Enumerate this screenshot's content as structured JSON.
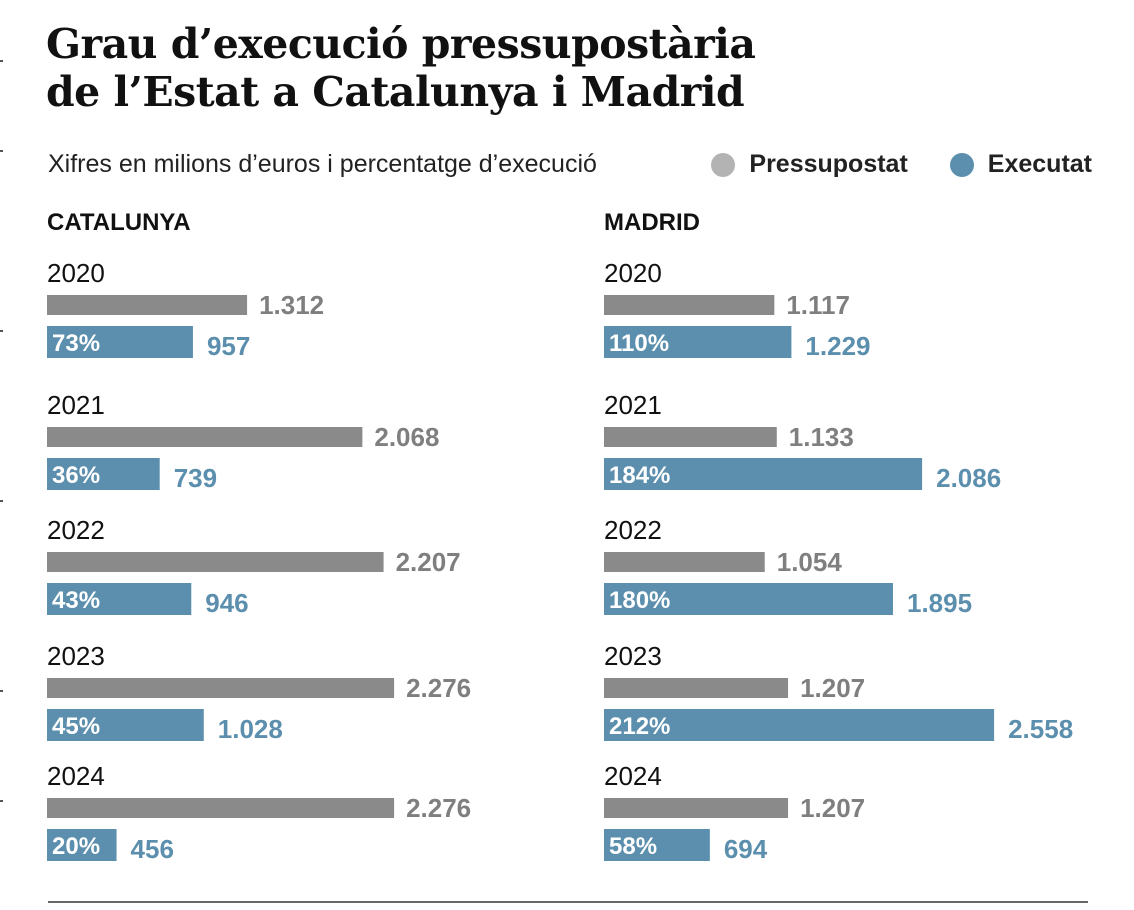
{
  "title_line1": "Grau d’execució pressupostària",
  "title_line2": "de l’Estat a Catalunya i Madrid",
  "subtitle": "Xifres en milions d’euros i percentatge d’execució",
  "legend": [
    {
      "label": "Pressupostat",
      "color": "#8a8a8a",
      "dot_color": "#b3b3b3"
    },
    {
      "label": "Executat",
      "color": "#5b8fad",
      "dot_color": "#5b8fad"
    }
  ],
  "colors": {
    "budget_bar": "#8a8a8a",
    "budget_text": "#7f7f7f",
    "executed_bar": "#5b8fad",
    "executed_text": "#5b8fad"
  },
  "chart_data": [
    {
      "type": "bar",
      "orientation": "horizontal",
      "title": "CATALUNYA",
      "categories": [
        "2020",
        "2021",
        "2022",
        "2023",
        "2024"
      ],
      "series": [
        {
          "name": "Pressupostat",
          "values": [
            1312,
            2068,
            2207,
            2276,
            2276
          ],
          "labels": [
            "1.312",
            "2.068",
            "2.207",
            "2.276",
            "2.276"
          ]
        },
        {
          "name": "Executat",
          "values": [
            957,
            739,
            946,
            1028,
            456
          ],
          "labels": [
            "957",
            "739",
            "946",
            "1.028",
            "456"
          ],
          "percent_labels": [
            "73%",
            "36%",
            "43%",
            "45%",
            "20%"
          ]
        }
      ],
      "xlim": [
        0,
        2600
      ]
    },
    {
      "type": "bar",
      "orientation": "horizontal",
      "title": "MADRID",
      "categories": [
        "2020",
        "2021",
        "2022",
        "2023",
        "2024"
      ],
      "series": [
        {
          "name": "Pressupostat",
          "values": [
            1117,
            1133,
            1054,
            1207,
            1207
          ],
          "labels": [
            "1.117",
            "1.133",
            "1.054",
            "1.207",
            "1.207"
          ]
        },
        {
          "name": "Executat",
          "values": [
            1229,
            2086,
            1895,
            2558,
            694
          ],
          "labels": [
            "1.229",
            "2.086",
            "1.895",
            "2.558",
            "694"
          ],
          "percent_labels": [
            "110%",
            "184%",
            "180%",
            "212%",
            "58%"
          ]
        }
      ],
      "xlim": [
        0,
        2600
      ]
    }
  ]
}
